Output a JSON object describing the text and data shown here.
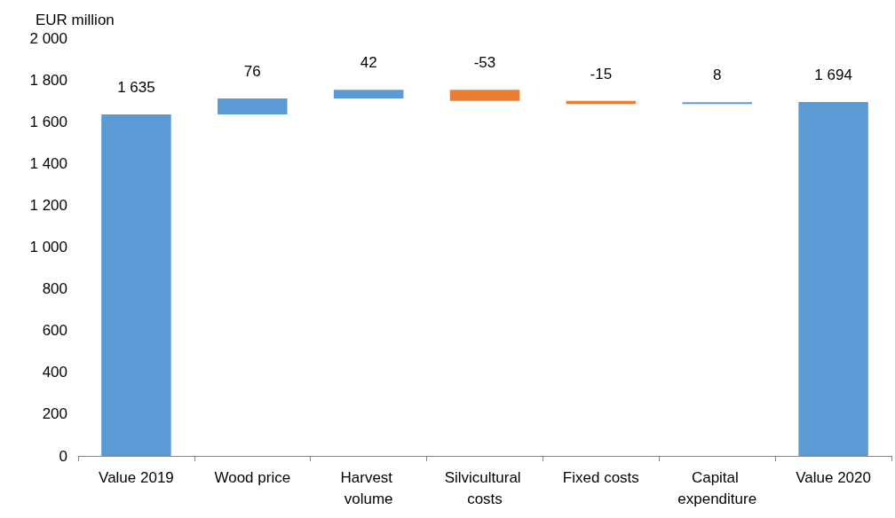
{
  "chart_data": {
    "type": "bar",
    "ylabel": "EUR million",
    "categories": [
      "Value 2019",
      "Wood price",
      "Harvest volume",
      "Silvicultural costs",
      "Fixed costs",
      "Capital expenditure",
      "Value 2020"
    ],
    "values": [
      1635,
      76,
      42,
      -53,
      -15,
      8,
      1694
    ],
    "base": [
      0,
      1635,
      1711,
      1753,
      1700,
      1685,
      0
    ],
    "colors": [
      "#5b9bd5",
      "#5b9bd5",
      "#5b9bd5",
      "#ed7d31",
      "#ed7d31",
      "#5b9bd5",
      "#5b9bd5"
    ],
    "value_labels": [
      "1 635",
      "76",
      "42",
      "-53",
      "-15",
      "8",
      "1 694"
    ],
    "ylim": [
      0,
      2000
    ],
    "yticks": [
      0,
      200,
      400,
      600,
      800,
      {
        "value": 1000,
        "label": "1 000"
      },
      {
        "value": 1200,
        "label": "1 200"
      },
      {
        "value": 1400,
        "label": "1 400"
      },
      {
        "value": 1600,
        "label": "1 600"
      },
      {
        "value": 1800,
        "label": "1 800"
      },
      {
        "value": 2000,
        "label": "2 000"
      }
    ],
    "grid": false
  }
}
